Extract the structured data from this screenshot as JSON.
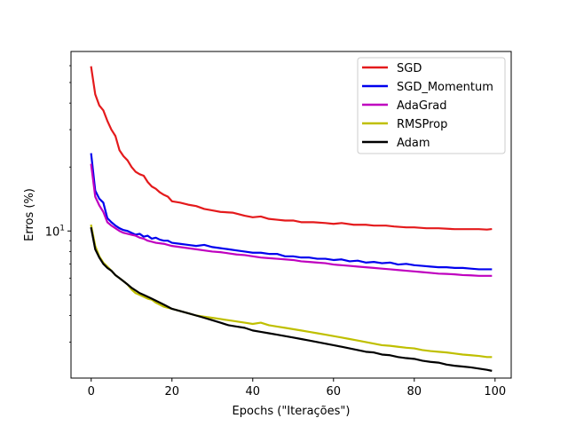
{
  "chart_data": {
    "type": "line",
    "title": "",
    "xlabel": "Epochs (\"Iterações\")",
    "ylabel": "Erros (%)",
    "yscale": "log",
    "xlim": [
      -5,
      104
    ],
    "ylim": [
      2.03,
      70
    ],
    "xticks": [
      0,
      20,
      40,
      60,
      80,
      100
    ],
    "yticks": [
      {
        "value": 10,
        "label": "10",
        "sup": "1"
      }
    ],
    "grid": false,
    "legend_position": "top-right",
    "series": [
      {
        "name": "SGD",
        "color": "#e41a1c",
        "points": [
          [
            0,
            59
          ],
          [
            1,
            44
          ],
          [
            2,
            39
          ],
          [
            3,
            37
          ],
          [
            4,
            33
          ],
          [
            5,
            30
          ],
          [
            6,
            28
          ],
          [
            7,
            24
          ],
          [
            8,
            22.5
          ],
          [
            9,
            21.5
          ],
          [
            10,
            20
          ],
          [
            11,
            19
          ],
          [
            12,
            18.5
          ],
          [
            13,
            18.2
          ],
          [
            14,
            17
          ],
          [
            15,
            16.2
          ],
          [
            16,
            15.8
          ],
          [
            17,
            15.2
          ],
          [
            18,
            14.8
          ],
          [
            19,
            14.5
          ],
          [
            20,
            13.8
          ],
          [
            22,
            13.6
          ],
          [
            24,
            13.3
          ],
          [
            26,
            13.1
          ],
          [
            28,
            12.7
          ],
          [
            30,
            12.5
          ],
          [
            32,
            12.3
          ],
          [
            35,
            12.2
          ],
          [
            38,
            11.8
          ],
          [
            40,
            11.6
          ],
          [
            42,
            11.7
          ],
          [
            44,
            11.4
          ],
          [
            46,
            11.3
          ],
          [
            48,
            11.2
          ],
          [
            50,
            11.2
          ],
          [
            52,
            11.0
          ],
          [
            55,
            11.0
          ],
          [
            58,
            10.9
          ],
          [
            60,
            10.8
          ],
          [
            62,
            10.9
          ],
          [
            65,
            10.7
          ],
          [
            68,
            10.7
          ],
          [
            70,
            10.6
          ],
          [
            73,
            10.6
          ],
          [
            75,
            10.5
          ],
          [
            78,
            10.4
          ],
          [
            80,
            10.4
          ],
          [
            83,
            10.3
          ],
          [
            86,
            10.3
          ],
          [
            90,
            10.2
          ],
          [
            93,
            10.2
          ],
          [
            96,
            10.2
          ],
          [
            98,
            10.15
          ],
          [
            99,
            10.2
          ]
        ]
      },
      {
        "name": "SGD_Momentum",
        "color": "#0000ee",
        "points": [
          [
            0,
            23
          ],
          [
            1,
            15.5
          ],
          [
            2,
            14.2
          ],
          [
            3,
            13.6
          ],
          [
            4,
            11.5
          ],
          [
            5,
            11.0
          ],
          [
            6,
            10.6
          ],
          [
            7,
            10.3
          ],
          [
            8,
            10.1
          ],
          [
            9,
            10.0
          ],
          [
            10,
            9.8
          ],
          [
            11,
            9.6
          ],
          [
            12,
            9.7
          ],
          [
            13,
            9.4
          ],
          [
            14,
            9.5
          ],
          [
            15,
            9.2
          ],
          [
            16,
            9.3
          ],
          [
            17,
            9.1
          ],
          [
            18,
            9.0
          ],
          [
            19,
            9.0
          ],
          [
            20,
            8.8
          ],
          [
            22,
            8.7
          ],
          [
            24,
            8.6
          ],
          [
            26,
            8.5
          ],
          [
            28,
            8.6
          ],
          [
            30,
            8.4
          ],
          [
            32,
            8.3
          ],
          [
            34,
            8.2
          ],
          [
            36,
            8.1
          ],
          [
            38,
            8.0
          ],
          [
            40,
            7.9
          ],
          [
            42,
            7.9
          ],
          [
            44,
            7.8
          ],
          [
            46,
            7.8
          ],
          [
            48,
            7.6
          ],
          [
            50,
            7.6
          ],
          [
            52,
            7.5
          ],
          [
            54,
            7.5
          ],
          [
            56,
            7.4
          ],
          [
            58,
            7.4
          ],
          [
            60,
            7.3
          ],
          [
            62,
            7.35
          ],
          [
            64,
            7.2
          ],
          [
            66,
            7.25
          ],
          [
            68,
            7.1
          ],
          [
            70,
            7.15
          ],
          [
            72,
            7.05
          ],
          [
            74,
            7.1
          ],
          [
            76,
            6.95
          ],
          [
            78,
            7.0
          ],
          [
            80,
            6.9
          ],
          [
            82,
            6.85
          ],
          [
            84,
            6.8
          ],
          [
            86,
            6.75
          ],
          [
            88,
            6.75
          ],
          [
            90,
            6.7
          ],
          [
            92,
            6.7
          ],
          [
            94,
            6.65
          ],
          [
            96,
            6.6
          ],
          [
            98,
            6.6
          ],
          [
            99,
            6.6
          ]
        ]
      },
      {
        "name": "AdaGrad",
        "color": "#bf00bf",
        "points": [
          [
            0,
            20.5
          ],
          [
            1,
            14.5
          ],
          [
            2,
            13.2
          ],
          [
            3,
            12.3
          ],
          [
            4,
            11.0
          ],
          [
            5,
            10.6
          ],
          [
            6,
            10.3
          ],
          [
            7,
            10.0
          ],
          [
            8,
            9.8
          ],
          [
            9,
            9.7
          ],
          [
            10,
            9.6
          ],
          [
            11,
            9.5
          ],
          [
            12,
            9.3
          ],
          [
            13,
            9.2
          ],
          [
            14,
            9.0
          ],
          [
            15,
            8.9
          ],
          [
            16,
            8.8
          ],
          [
            17,
            8.75
          ],
          [
            18,
            8.7
          ],
          [
            19,
            8.6
          ],
          [
            20,
            8.5
          ],
          [
            22,
            8.4
          ],
          [
            24,
            8.3
          ],
          [
            26,
            8.2
          ],
          [
            28,
            8.1
          ],
          [
            30,
            8.0
          ],
          [
            32,
            7.95
          ],
          [
            34,
            7.85
          ],
          [
            36,
            7.75
          ],
          [
            38,
            7.7
          ],
          [
            40,
            7.6
          ],
          [
            42,
            7.5
          ],
          [
            44,
            7.45
          ],
          [
            46,
            7.4
          ],
          [
            48,
            7.35
          ],
          [
            50,
            7.3
          ],
          [
            52,
            7.2
          ],
          [
            54,
            7.15
          ],
          [
            56,
            7.1
          ],
          [
            58,
            7.05
          ],
          [
            60,
            6.95
          ],
          [
            62,
            6.9
          ],
          [
            64,
            6.85
          ],
          [
            66,
            6.8
          ],
          [
            68,
            6.75
          ],
          [
            70,
            6.7
          ],
          [
            72,
            6.65
          ],
          [
            74,
            6.6
          ],
          [
            76,
            6.55
          ],
          [
            78,
            6.5
          ],
          [
            80,
            6.45
          ],
          [
            82,
            6.4
          ],
          [
            84,
            6.35
          ],
          [
            86,
            6.3
          ],
          [
            88,
            6.28
          ],
          [
            90,
            6.25
          ],
          [
            92,
            6.2
          ],
          [
            94,
            6.18
          ],
          [
            96,
            6.15
          ],
          [
            98,
            6.15
          ],
          [
            99,
            6.15
          ]
        ]
      },
      {
        "name": "RMSProp",
        "color": "#bfbf00",
        "points": [
          [
            0,
            10.6
          ],
          [
            1,
            8.5
          ],
          [
            2,
            7.6
          ],
          [
            3,
            7.1
          ],
          [
            4,
            6.8
          ],
          [
            5,
            6.5
          ],
          [
            6,
            6.2
          ],
          [
            7,
            6.0
          ],
          [
            8,
            5.8
          ],
          [
            9,
            5.6
          ],
          [
            10,
            5.3
          ],
          [
            11,
            5.1
          ],
          [
            12,
            5.0
          ],
          [
            13,
            4.9
          ],
          [
            14,
            4.8
          ],
          [
            15,
            4.75
          ],
          [
            16,
            4.6
          ],
          [
            17,
            4.5
          ],
          [
            18,
            4.4
          ],
          [
            19,
            4.35
          ],
          [
            20,
            4.3
          ],
          [
            22,
            4.2
          ],
          [
            24,
            4.1
          ],
          [
            26,
            4.0
          ],
          [
            28,
            3.95
          ],
          [
            30,
            3.9
          ],
          [
            32,
            3.85
          ],
          [
            34,
            3.8
          ],
          [
            36,
            3.75
          ],
          [
            38,
            3.7
          ],
          [
            40,
            3.65
          ],
          [
            42,
            3.7
          ],
          [
            44,
            3.6
          ],
          [
            46,
            3.55
          ],
          [
            48,
            3.5
          ],
          [
            50,
            3.45
          ],
          [
            52,
            3.4
          ],
          [
            54,
            3.35
          ],
          [
            56,
            3.3
          ],
          [
            58,
            3.25
          ],
          [
            60,
            3.2
          ],
          [
            62,
            3.15
          ],
          [
            64,
            3.1
          ],
          [
            66,
            3.05
          ],
          [
            68,
            3.0
          ],
          [
            70,
            2.95
          ],
          [
            72,
            2.9
          ],
          [
            74,
            2.88
          ],
          [
            76,
            2.85
          ],
          [
            78,
            2.82
          ],
          [
            80,
            2.8
          ],
          [
            82,
            2.75
          ],
          [
            84,
            2.72
          ],
          [
            86,
            2.7
          ],
          [
            88,
            2.68
          ],
          [
            90,
            2.65
          ],
          [
            92,
            2.62
          ],
          [
            94,
            2.6
          ],
          [
            96,
            2.58
          ],
          [
            98,
            2.55
          ],
          [
            99,
            2.55
          ]
        ]
      },
      {
        "name": "Adam",
        "color": "#000000",
        "points": [
          [
            0,
            10.3
          ],
          [
            1,
            8.2
          ],
          [
            2,
            7.5
          ],
          [
            3,
            7.0
          ],
          [
            4,
            6.7
          ],
          [
            5,
            6.5
          ],
          [
            6,
            6.2
          ],
          [
            7,
            6.0
          ],
          [
            8,
            5.8
          ],
          [
            9,
            5.6
          ],
          [
            10,
            5.4
          ],
          [
            11,
            5.25
          ],
          [
            12,
            5.1
          ],
          [
            13,
            5.0
          ],
          [
            14,
            4.9
          ],
          [
            15,
            4.8
          ],
          [
            16,
            4.7
          ],
          [
            17,
            4.6
          ],
          [
            18,
            4.5
          ],
          [
            19,
            4.4
          ],
          [
            20,
            4.3
          ],
          [
            22,
            4.2
          ],
          [
            24,
            4.1
          ],
          [
            26,
            4.0
          ],
          [
            28,
            3.9
          ],
          [
            30,
            3.8
          ],
          [
            32,
            3.7
          ],
          [
            34,
            3.6
          ],
          [
            36,
            3.55
          ],
          [
            38,
            3.5
          ],
          [
            40,
            3.4
          ],
          [
            42,
            3.35
          ],
          [
            44,
            3.3
          ],
          [
            46,
            3.25
          ],
          [
            48,
            3.2
          ],
          [
            50,
            3.15
          ],
          [
            52,
            3.1
          ],
          [
            54,
            3.05
          ],
          [
            56,
            3.0
          ],
          [
            58,
            2.95
          ],
          [
            60,
            2.9
          ],
          [
            62,
            2.85
          ],
          [
            64,
            2.8
          ],
          [
            66,
            2.75
          ],
          [
            68,
            2.7
          ],
          [
            70,
            2.68
          ],
          [
            72,
            2.62
          ],
          [
            74,
            2.6
          ],
          [
            76,
            2.55
          ],
          [
            78,
            2.52
          ],
          [
            80,
            2.5
          ],
          [
            82,
            2.45
          ],
          [
            84,
            2.42
          ],
          [
            86,
            2.4
          ],
          [
            88,
            2.35
          ],
          [
            90,
            2.32
          ],
          [
            92,
            2.3
          ],
          [
            94,
            2.28
          ],
          [
            96,
            2.25
          ],
          [
            98,
            2.22
          ],
          [
            99,
            2.2
          ]
        ]
      }
    ]
  }
}
